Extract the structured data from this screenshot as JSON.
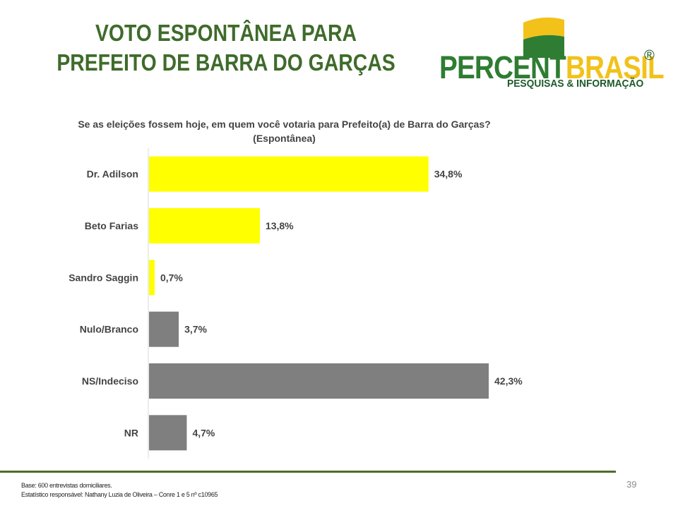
{
  "title": {
    "line1": "VOTO ESPONTÂNEA PARA",
    "line2": "PREFEITO DE BARRA DO GARÇAS"
  },
  "logo": {
    "main_part1": "PERCENT",
    "main_part2": "BRASIL",
    "registered": "®",
    "tagline": "PESQUISAS & INFORMAÇÃO"
  },
  "colors": {
    "title_green": "#3f6b2b",
    "candidate_bar": "#ffff00",
    "other_bar": "#7f7f7f",
    "footer_line": "#4e6b2b"
  },
  "chart_data": {
    "type": "bar",
    "orientation": "horizontal",
    "title": "Se as eleições fossem hoje, em quem você votaria para Prefeito(a) de Barra do Garças?",
    "subtitle": "(Espontânea)",
    "categories": [
      "Dr. Adilson",
      "Beto Farias",
      "Sandro Saggin",
      "Nulo/Branco",
      "NS/Indeciso",
      "NR"
    ],
    "values": [
      34.8,
      13.8,
      0.7,
      3.7,
      42.3,
      4.7
    ],
    "value_labels": [
      "34,8%",
      "13,8%",
      "0,7%",
      "3,7%",
      "42,3%",
      "4,7%"
    ],
    "bar_colors": [
      "#ffff00",
      "#ffff00",
      "#ffff00",
      "#7f7f7f",
      "#7f7f7f",
      "#7f7f7f"
    ],
    "xlim": [
      0,
      45
    ],
    "grid": false,
    "legend": "none"
  },
  "footer": {
    "base": "Base: 600 entrevistas domiciliares.",
    "responsible": "Estatístico responsável: Nathany Luzia de Oliveira – Conre 1 e 5 nº c10965",
    "page_number": "39"
  }
}
